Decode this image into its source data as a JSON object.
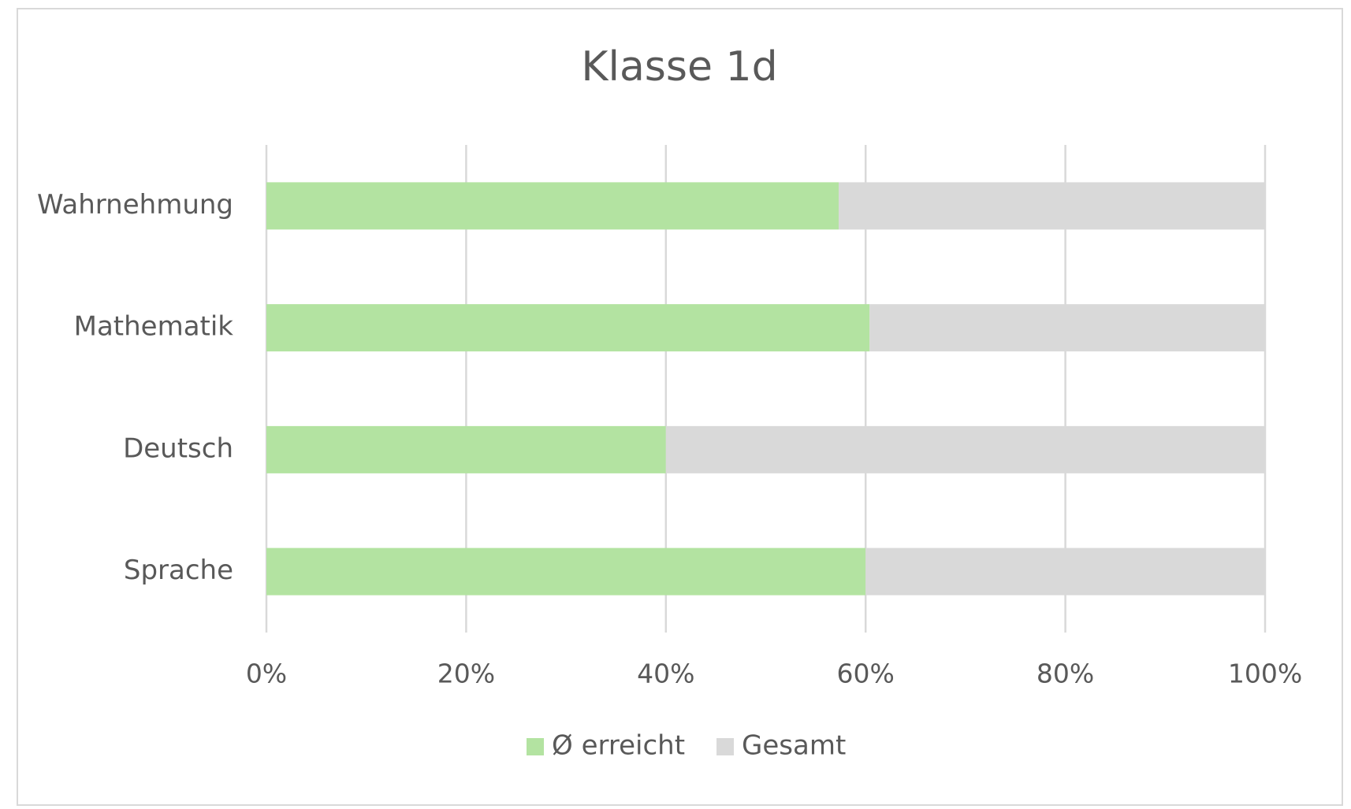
{
  "chart_data": {
    "type": "bar",
    "orientation": "horizontal",
    "stacked": true,
    "title": "Klasse 1d",
    "categories": [
      "Wahrnehmung",
      "Mathematik",
      "Deutsch",
      "Sprache"
    ],
    "series": [
      {
        "name": "Ø erreicht",
        "color": "#b3e3a1",
        "values": [
          57.3,
          60.4,
          40,
          60
        ]
      },
      {
        "name": "Gesamt",
        "color": "#d9d9d9",
        "values": [
          42.7,
          39.6,
          60,
          40
        ]
      }
    ],
    "xlim": [
      0,
      100
    ],
    "xticks": [
      {
        "value": 0,
        "label": "0%"
      },
      {
        "value": 20,
        "label": "20%"
      },
      {
        "value": 40,
        "label": "40%"
      },
      {
        "value": 60,
        "label": "60%"
      },
      {
        "value": 80,
        "label": "80%"
      },
      {
        "value": 100,
        "label": "100%"
      }
    ],
    "grid": true,
    "legend": "bottom"
  }
}
